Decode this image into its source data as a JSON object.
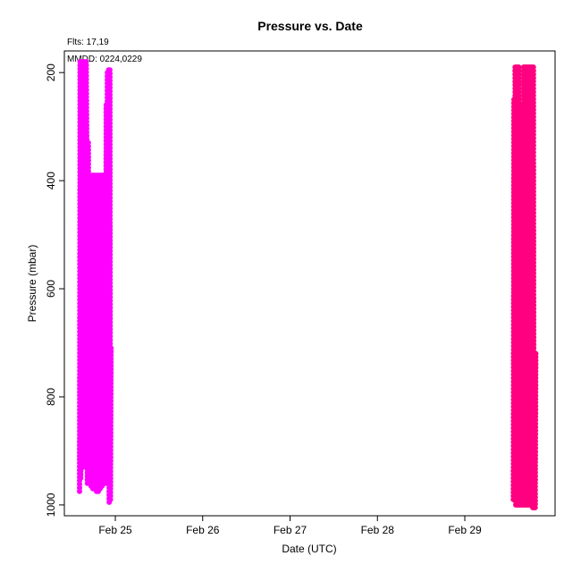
{
  "chart_data": {
    "type": "scatter",
    "title": "Pressure  vs. Date",
    "xlabel": "Date (UTC)",
    "ylabel": "Pressure (mbar)",
    "annotations": [
      "Flts: 17,19",
      "MMDD: 0224,0229"
    ],
    "x_unit": "date",
    "x_ticks": [
      {
        "date": "2016-02-25",
        "label": "Feb 25"
      },
      {
        "date": "2016-02-26",
        "label": "Feb 26"
      },
      {
        "date": "2016-02-27",
        "label": "Feb 27"
      },
      {
        "date": "2016-02-28",
        "label": "Feb 28"
      },
      {
        "date": "2016-02-29",
        "label": "Feb 29"
      }
    ],
    "xlim": [
      "2016-02-24T10:00",
      "2016-03-01T00:48"
    ],
    "y_ticks": [
      200,
      400,
      600,
      800,
      1000
    ],
    "ylim": [
      1020,
      160
    ],
    "y_reversed": true,
    "grid": false,
    "series": [
      {
        "color": "#ff00ff",
        "points": [
          [
            "2016-02-24T14:10",
            975
          ],
          [
            "2016-02-24T14:20",
            180
          ],
          [
            "2016-02-24T14:30",
            950
          ],
          [
            "2016-02-24T14:40",
            180
          ],
          [
            "2016-02-24T14:50",
            900
          ],
          [
            "2016-02-24T15:00",
            180
          ],
          [
            "2016-02-24T15:10",
            930
          ],
          [
            "2016-02-24T15:20",
            180
          ],
          [
            "2016-02-24T15:30",
            600
          ],
          [
            "2016-02-24T15:40",
            180
          ],
          [
            "2016-02-24T15:50",
            400
          ],
          [
            "2016-02-24T16:00",
            180
          ],
          [
            "2016-02-24T16:10",
            330
          ],
          [
            "2016-02-24T16:20",
            960
          ],
          [
            "2016-02-24T16:35",
            330
          ],
          [
            "2016-02-24T16:50",
            960
          ],
          [
            "2016-02-24T17:05",
            390
          ],
          [
            "2016-02-24T17:20",
            965
          ],
          [
            "2016-02-24T17:35",
            390
          ],
          [
            "2016-02-24T17:50",
            970
          ],
          [
            "2016-02-24T18:05",
            390
          ],
          [
            "2016-02-24T18:20",
            970
          ],
          [
            "2016-02-24T18:35",
            390
          ],
          [
            "2016-02-24T18:50",
            975
          ],
          [
            "2016-02-24T19:05",
            390
          ],
          [
            "2016-02-24T19:20",
            975
          ],
          [
            "2016-02-24T19:35",
            390
          ],
          [
            "2016-02-24T19:50",
            970
          ],
          [
            "2016-02-24T20:05",
            390
          ],
          [
            "2016-02-24T20:20",
            965
          ],
          [
            "2016-02-24T20:35",
            390
          ],
          [
            "2016-02-24T20:50",
            960
          ],
          [
            "2016-02-24T21:05",
            390
          ],
          [
            "2016-02-24T21:20",
            960
          ],
          [
            "2016-02-24T21:30",
            260
          ],
          [
            "2016-02-24T21:40",
            960
          ],
          [
            "2016-02-24T21:50",
            200
          ],
          [
            "2016-02-24T22:00",
            800
          ],
          [
            "2016-02-24T22:10",
            195
          ],
          [
            "2016-02-24T22:20",
            995
          ],
          [
            "2016-02-24T22:30",
            195
          ],
          [
            "2016-02-24T22:40",
            990
          ],
          [
            "2016-02-24T22:50",
            710
          ]
        ]
      },
      {
        "color": "#ff0080",
        "points": [
          [
            "2016-02-29T13:20",
            990
          ],
          [
            "2016-02-29T13:30",
            250
          ],
          [
            "2016-02-29T13:40",
            960
          ],
          [
            "2016-02-29T13:50",
            190
          ],
          [
            "2016-02-29T14:00",
            1000
          ],
          [
            "2016-02-29T14:10",
            190
          ],
          [
            "2016-02-29T14:20",
            1000
          ],
          [
            "2016-02-29T14:30",
            190
          ],
          [
            "2016-02-29T14:40",
            1000
          ],
          [
            "2016-02-29T14:50",
            190
          ],
          [
            "2016-02-29T15:00",
            1000
          ],
          [
            "2016-02-29T15:10",
            330
          ],
          [
            "2016-02-29T15:20",
            1000
          ],
          [
            "2016-02-29T15:30",
            320
          ],
          [
            "2016-02-29T15:40",
            1000
          ],
          [
            "2016-02-29T15:50",
            260
          ],
          [
            "2016-02-29T16:00",
            1000
          ],
          [
            "2016-02-29T16:10",
            190
          ],
          [
            "2016-02-29T16:20",
            1000
          ],
          [
            "2016-02-29T16:30",
            190
          ],
          [
            "2016-02-29T16:40",
            1000
          ],
          [
            "2016-02-29T16:50",
            190
          ],
          [
            "2016-02-29T17:00",
            1000
          ],
          [
            "2016-02-29T17:10",
            190
          ],
          [
            "2016-02-29T17:20",
            1000
          ],
          [
            "2016-02-29T17:30",
            190
          ],
          [
            "2016-02-29T17:40",
            1000
          ],
          [
            "2016-02-29T17:50",
            190
          ],
          [
            "2016-02-29T18:00",
            1000
          ],
          [
            "2016-02-29T18:10",
            190
          ],
          [
            "2016-02-29T18:20",
            1000
          ],
          [
            "2016-02-29T18:30",
            190
          ],
          [
            "2016-02-29T18:40",
            1005
          ],
          [
            "2016-02-29T18:50",
            190
          ],
          [
            "2016-02-29T19:00",
            1005
          ],
          [
            "2016-02-29T19:10",
            780
          ],
          [
            "2016-02-29T19:20",
            1005
          ],
          [
            "2016-02-29T19:30",
            720
          ]
        ]
      }
    ]
  }
}
